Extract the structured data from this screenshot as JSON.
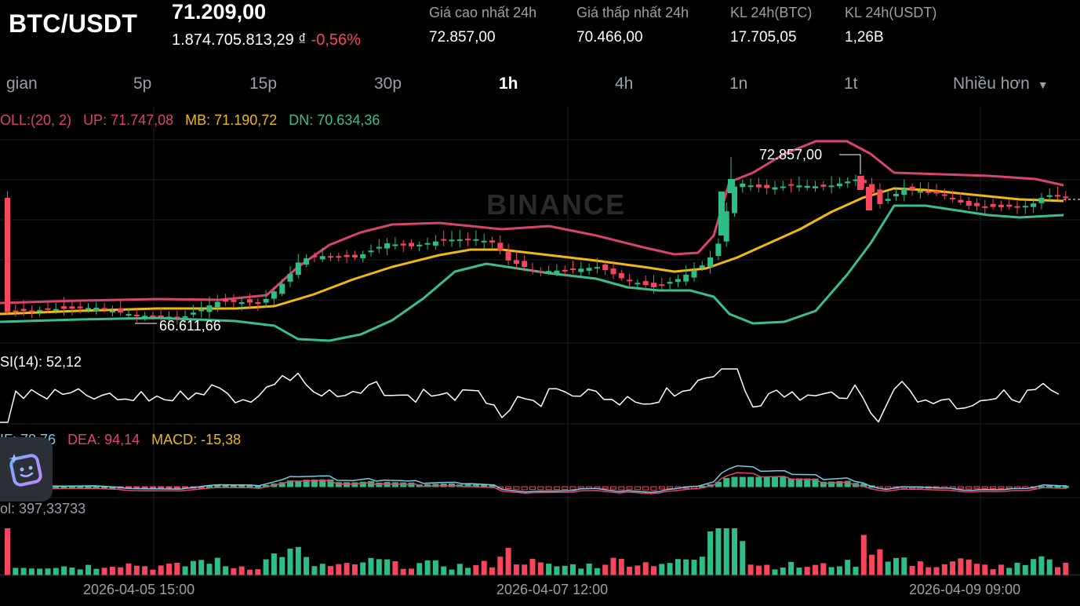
{
  "header": {
    "pair": "BTC/USDT",
    "last_price": "71.209,00",
    "fiat_price": "1.874.705.813,29 ₫",
    "change_pct": "-0,56%",
    "stats": [
      {
        "label": "Giá cao nhất 24h",
        "value": "72.857,00"
      },
      {
        "label": "Giá thấp nhất 24h",
        "value": "70.466,00"
      },
      {
        "label": "KL 24h(BTC)",
        "value": "17.705,05"
      },
      {
        "label": "KL 24h(USDT)",
        "value": "1,26B"
      }
    ]
  },
  "timeframes": {
    "items": [
      "gian",
      "5p",
      "15p",
      "30p",
      "1h",
      "4h",
      "1n",
      "1t"
    ],
    "active": "1h",
    "more_label": "Nhiều hơn"
  },
  "indicators": {
    "boll": {
      "name": "OLL:(20, 2)",
      "up": "UP: 71.747,08",
      "mb": "MB: 71.190,72",
      "dn": "DN: 70.634,36"
    },
    "rsi": "SI(14): 52,12",
    "macd": {
      "dif": "IF: 78,76",
      "dea": "DEA: 94,14",
      "macd": "MACD: -15,38"
    },
    "vol": "ol: 397,33733"
  },
  "watermark": "BINANCE",
  "chart_data": {
    "type": "candlestick",
    "interval": "1h",
    "x_ticks": [
      "2026-04-05 15:00",
      "2026-04-07 12:00",
      "2026-04-09 09:00"
    ],
    "high_marker": "72.857,00",
    "low_marker": "66.611,66",
    "colors": {
      "up": "#2ebd85",
      "down": "#f6465d",
      "boll_up": "#d9446b",
      "boll_mb": "#f0b90b",
      "boll_dn": "#3bbf8a",
      "dif": "#7ec8e3",
      "dea": "#e0456b",
      "rsi": "#ffffff"
    }
  }
}
